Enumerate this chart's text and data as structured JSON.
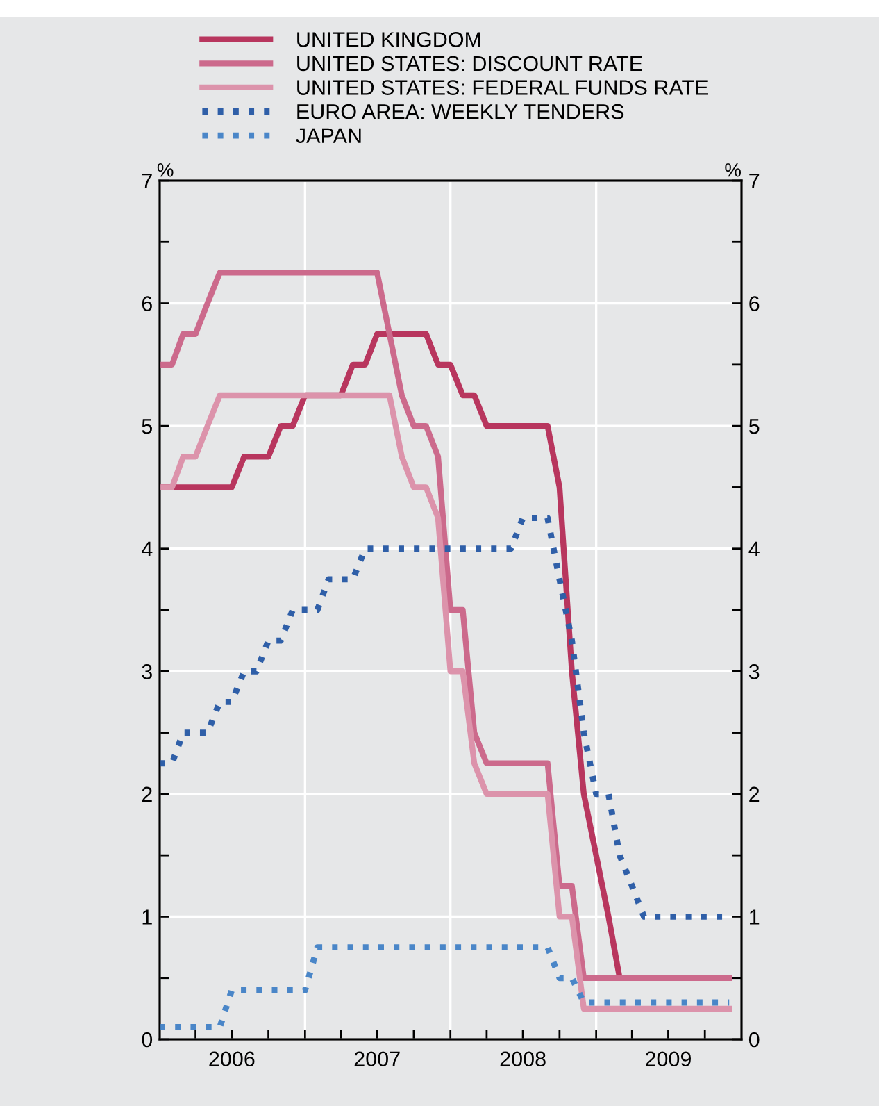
{
  "chart_data": {
    "type": "line",
    "series": [
      {
        "name": "UNITED KINGDOM",
        "color": "#b8365e",
        "line_style": "solid",
        "x": [
          "2006-01-01",
          "2006-07-01",
          "2006-08-01",
          "2006-10-01",
          "2006-11-01",
          "2006-12-01",
          "2007-01-01",
          "2007-04-01",
          "2007-05-01",
          "2007-06-01",
          "2007-07-01",
          "2007-11-01",
          "2007-12-01",
          "2008-01-01",
          "2008-02-01",
          "2008-03-01",
          "2008-04-01",
          "2008-09-01",
          "2008-10-01",
          "2008-11-01",
          "2008-12-01",
          "2009-01-01",
          "2009-02-01",
          "2009-03-01",
          "2009-12-01"
        ],
        "values": [
          4.5,
          4.5,
          4.75,
          4.75,
          5.0,
          5.0,
          5.25,
          5.25,
          5.5,
          5.5,
          5.75,
          5.75,
          5.5,
          5.5,
          5.25,
          5.25,
          5.0,
          5.0,
          4.5,
          3.0,
          2.0,
          1.5,
          1.0,
          0.5,
          0.5
        ]
      },
      {
        "name": "UNITED STATES: DISCOUNT RATE",
        "color": "#cc6a8c",
        "line_style": "solid",
        "x": [
          "2006-01-01",
          "2006-02-01",
          "2006-03-01",
          "2006-04-01",
          "2006-05-01",
          "2006-06-01",
          "2007-07-01",
          "2007-08-01",
          "2007-09-01",
          "2007-10-01",
          "2007-11-01",
          "2007-12-01",
          "2008-01-01",
          "2008-02-01",
          "2008-03-01",
          "2008-04-01",
          "2008-09-01",
          "2008-10-01",
          "2008-11-01",
          "2008-12-01",
          "2009-12-01"
        ],
        "values": [
          5.5,
          5.5,
          5.75,
          5.75,
          6.0,
          6.25,
          6.25,
          5.75,
          5.25,
          5.0,
          5.0,
          4.75,
          3.5,
          3.5,
          2.5,
          2.25,
          2.25,
          1.25,
          1.25,
          0.5,
          0.5
        ]
      },
      {
        "name": "UNITED STATES: FEDERAL FUNDS RATE",
        "color": "#dc93ab",
        "line_style": "solid",
        "x": [
          "2006-01-01",
          "2006-02-01",
          "2006-03-01",
          "2006-04-01",
          "2006-05-01",
          "2006-06-01",
          "2007-08-01",
          "2007-09-01",
          "2007-10-01",
          "2007-11-01",
          "2007-12-01",
          "2008-01-01",
          "2008-02-01",
          "2008-03-01",
          "2008-04-01",
          "2008-09-01",
          "2008-10-01",
          "2008-11-01",
          "2008-12-01",
          "2009-12-01"
        ],
        "values": [
          4.5,
          4.5,
          4.75,
          4.75,
          5.0,
          5.25,
          5.25,
          4.75,
          4.5,
          4.5,
          4.25,
          3.0,
          3.0,
          2.25,
          2.0,
          2.0,
          1.0,
          1.0,
          0.25,
          0.25
        ]
      },
      {
        "name": "EURO AREA: WEEKLY TENDERS",
        "color": "#2f5fa8",
        "line_style": "dotted",
        "x": [
          "2006-01-01",
          "2006-02-01",
          "2006-03-01",
          "2006-05-01",
          "2006-06-01",
          "2006-07-01",
          "2006-08-01",
          "2006-09-01",
          "2006-10-01",
          "2006-11-01",
          "2006-12-01",
          "2007-02-01",
          "2007-03-01",
          "2007-05-01",
          "2007-06-01",
          "2008-06-01",
          "2008-07-01",
          "2008-09-01",
          "2008-10-01",
          "2008-11-01",
          "2008-12-01",
          "2009-01-01",
          "2009-02-01",
          "2009-03-01",
          "2009-04-01",
          "2009-05-01",
          "2009-12-01"
        ],
        "values": [
          2.25,
          2.25,
          2.5,
          2.5,
          2.75,
          2.75,
          3.0,
          3.0,
          3.25,
          3.25,
          3.5,
          3.5,
          3.75,
          3.75,
          4.0,
          4.0,
          4.25,
          4.25,
          3.75,
          3.25,
          2.5,
          2.0,
          2.0,
          1.5,
          1.25,
          1.0,
          1.0
        ]
      },
      {
        "name": "JAPAN",
        "color": "#4a86c8",
        "line_style": "dotted",
        "x": [
          "2006-01-01",
          "2006-06-01",
          "2006-07-01",
          "2007-01-01",
          "2007-02-01",
          "2008-09-01",
          "2008-10-01",
          "2008-11-01",
          "2008-12-01",
          "2009-12-01"
        ],
        "values": [
          0.1,
          0.1,
          0.4,
          0.4,
          0.75,
          0.75,
          0.5,
          0.5,
          0.3,
          0.3
        ]
      }
    ],
    "ylabel": "%",
    "y2label": "%",
    "xlim": [
      "2006-01-01",
      "2010-01-01"
    ],
    "xticks": [
      {
        "value": "2006-04-01",
        "label": null
      },
      {
        "value": "2006-07-01",
        "label": "2006"
      },
      {
        "value": "2006-10-01",
        "label": null
      },
      {
        "value": "2007-01-01",
        "label": null
      },
      {
        "value": "2007-04-01",
        "label": null
      },
      {
        "value": "2007-07-01",
        "label": "2007"
      },
      {
        "value": "2007-10-01",
        "label": null
      },
      {
        "value": "2008-01-01",
        "label": null
      },
      {
        "value": "2008-04-01",
        "label": null
      },
      {
        "value": "2008-07-01",
        "label": "2008"
      },
      {
        "value": "2008-10-01",
        "label": null
      },
      {
        "value": "2009-01-01",
        "label": null
      },
      {
        "value": "2009-04-01",
        "label": null
      },
      {
        "value": "2009-07-01",
        "label": "2009"
      },
      {
        "value": "2009-10-01",
        "label": null
      }
    ],
    "ylim": [
      0,
      7
    ],
    "yticks": [
      0,
      {
        "value": 0.5,
        "label": null
      },
      1,
      {
        "value": 1.5,
        "label": null
      },
      2,
      {
        "value": 2.5,
        "label": null
      },
      3,
      {
        "value": 3.5,
        "label": null
      },
      4,
      {
        "value": 4.5,
        "label": null
      },
      5,
      {
        "value": 5.5,
        "label": null
      },
      6,
      {
        "value": 6.5,
        "label": null
      },
      7
    ],
    "y2lim": [
      0,
      7
    ],
    "y2ticks": [
      0,
      {
        "value": 0.5,
        "label": null
      },
      1,
      {
        "value": 1.5,
        "label": null
      },
      2,
      {
        "value": 2.5,
        "label": null
      },
      3,
      {
        "value": 3.5,
        "label": null
      },
      4,
      {
        "value": 4.5,
        "label": null
      },
      5,
      {
        "value": 5.5,
        "label": null
      },
      6,
      {
        "value": 6.5,
        "label": null
      },
      7
    ],
    "grid": true,
    "legend": "top",
    "marker": "none"
  }
}
